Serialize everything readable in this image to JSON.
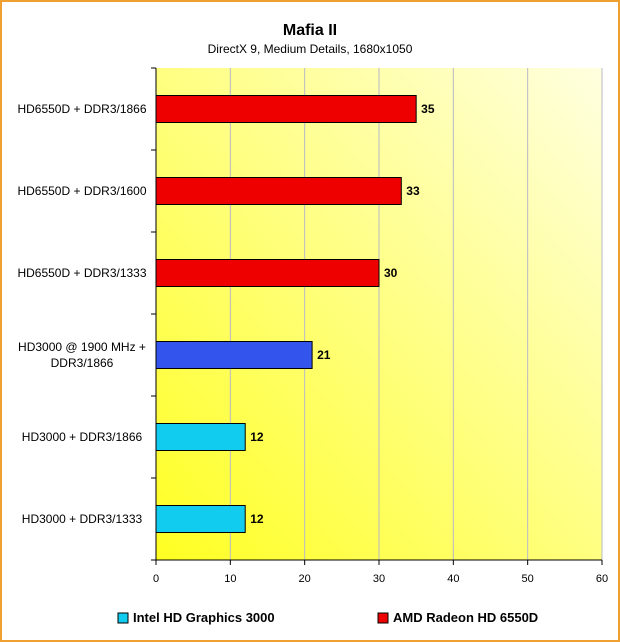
{
  "chart_data": {
    "type": "bar",
    "orientation": "horizontal",
    "title": "Mafia II",
    "subtitle": "DirectX 9, Medium Details, 1680x1050",
    "categories": [
      "HD6550D + DDR3/1866",
      "HD6550D + DDR3/1600",
      "HD6550D + DDR3/1333",
      "HD3000 @ 1900 MHz + DDR3/1866",
      "HD3000 + DDR3/1866",
      "HD3000 + DDR3/1333"
    ],
    "category_lines": [
      [
        "HD6550D + DDR3/1866"
      ],
      [
        "HD6550D + DDR3/1600"
      ],
      [
        "HD6550D + DDR3/1333"
      ],
      [
        "HD3000 @ 1900 MHz +",
        "DDR3/1866"
      ],
      [
        "HD3000 + DDR3/1866"
      ],
      [
        "HD3000 + DDR3/1333"
      ]
    ],
    "values": [
      35,
      33,
      30,
      21,
      12,
      12
    ],
    "bar_colors": [
      "#ee0000",
      "#ee0000",
      "#ee0000",
      "#3355ee",
      "#11ccee",
      "#11ccee"
    ],
    "xlim": [
      0,
      60
    ],
    "xticks": [
      0,
      10,
      20,
      30,
      40,
      50,
      60
    ],
    "grid": true,
    "legend_position": "bottom",
    "legend": [
      {
        "name": "Intel HD Graphics 3000",
        "color": "#11ccee"
      },
      {
        "name": "AMD Radeon HD 6550D",
        "color": "#ee0000"
      }
    ],
    "colors": {
      "frame": "#f0a030",
      "plot_bg_light": "#ffffe0",
      "plot_bg_dark": "#ffff22",
      "gridline": "#b8b8c8"
    }
  }
}
